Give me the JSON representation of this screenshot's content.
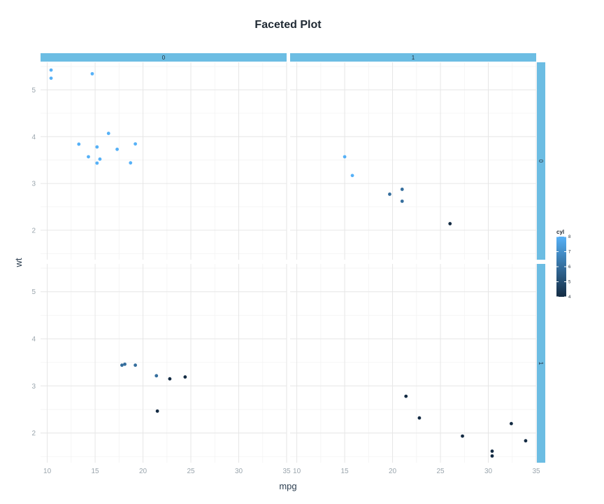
{
  "chart_data": {
    "type": "scatter",
    "title": "Faceted Plot",
    "xlabel": "mpg",
    "ylabel": "wt",
    "xlim": [
      9.3,
      35.0
    ],
    "ylim": [
      1.37,
      5.59
    ],
    "x_ticks": [
      10,
      15,
      20,
      25,
      30,
      35
    ],
    "y_ticks": [
      2,
      3,
      4,
      5
    ],
    "grid": true,
    "facet_cols": [
      "0",
      "1"
    ],
    "facet_rows": [
      "0",
      "1"
    ],
    "color_var": "cyl",
    "color_range": [
      4,
      8
    ],
    "legend_ticks": [
      4,
      5,
      6,
      7,
      8
    ],
    "legend_placement": "right",
    "colors": {
      "low": "#132b43",
      "high": "#56b1f7",
      "strip": "#6cbde3"
    },
    "panels": [
      {
        "col": "0",
        "row": "0",
        "points": [
          {
            "x": 10.4,
            "y": 5.424,
            "cyl": 8
          },
          {
            "x": 10.4,
            "y": 5.25,
            "cyl": 8
          },
          {
            "x": 14.7,
            "y": 5.345,
            "cyl": 8
          },
          {
            "x": 13.3,
            "y": 3.84,
            "cyl": 8
          },
          {
            "x": 14.3,
            "y": 3.57,
            "cyl": 8
          },
          {
            "x": 15.2,
            "y": 3.78,
            "cyl": 8
          },
          {
            "x": 15.2,
            "y": 3.435,
            "cyl": 8
          },
          {
            "x": 15.5,
            "y": 3.52,
            "cyl": 8
          },
          {
            "x": 16.4,
            "y": 4.07,
            "cyl": 8
          },
          {
            "x": 17.3,
            "y": 3.73,
            "cyl": 8
          },
          {
            "x": 18.7,
            "y": 3.44,
            "cyl": 8
          },
          {
            "x": 19.2,
            "y": 3.845,
            "cyl": 8
          }
        ]
      },
      {
        "col": "1",
        "row": "0",
        "points": [
          {
            "x": 15.0,
            "y": 3.57,
            "cyl": 8
          },
          {
            "x": 15.8,
            "y": 3.17,
            "cyl": 8
          },
          {
            "x": 19.7,
            "y": 2.77,
            "cyl": 6
          },
          {
            "x": 21.0,
            "y": 2.875,
            "cyl": 6
          },
          {
            "x": 21.0,
            "y": 2.62,
            "cyl": 6
          },
          {
            "x": 26.0,
            "y": 2.14,
            "cyl": 4
          }
        ]
      },
      {
        "col": "0",
        "row": "1",
        "points": [
          {
            "x": 17.8,
            "y": 3.44,
            "cyl": 6
          },
          {
            "x": 18.1,
            "y": 3.46,
            "cyl": 6
          },
          {
            "x": 19.2,
            "y": 3.44,
            "cyl": 6
          },
          {
            "x": 21.4,
            "y": 3.215,
            "cyl": 6
          },
          {
            "x": 22.8,
            "y": 3.15,
            "cyl": 4
          },
          {
            "x": 24.4,
            "y": 3.19,
            "cyl": 4
          },
          {
            "x": 21.5,
            "y": 2.465,
            "cyl": 4
          }
        ]
      },
      {
        "col": "1",
        "row": "1",
        "points": [
          {
            "x": 21.4,
            "y": 2.78,
            "cyl": 4
          },
          {
            "x": 22.8,
            "y": 2.32,
            "cyl": 4
          },
          {
            "x": 27.3,
            "y": 1.935,
            "cyl": 4
          },
          {
            "x": 32.4,
            "y": 2.2,
            "cyl": 4
          },
          {
            "x": 33.9,
            "y": 1.835,
            "cyl": 4
          },
          {
            "x": 30.4,
            "y": 1.615,
            "cyl": 4
          },
          {
            "x": 30.4,
            "y": 1.513,
            "cyl": 4
          }
        ]
      }
    ]
  }
}
